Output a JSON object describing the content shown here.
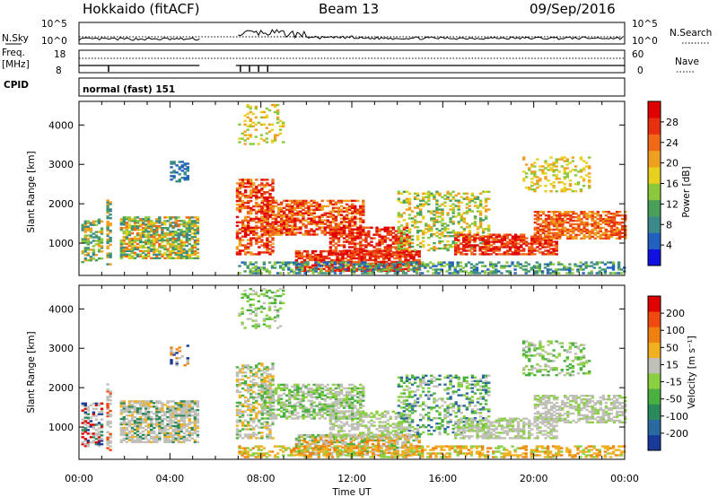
{
  "header": {
    "radar": "Hokkaido (fitACF)",
    "beam": "Beam 13",
    "date": "09/Sep/2016"
  },
  "status_panels": {
    "nsky_label": "N.Sky",
    "nsky_ticks": [
      "10^5",
      "10^0"
    ],
    "nsearch_label": "N.Search",
    "nsearch_ticks": [
      "10^5",
      "10^0"
    ],
    "freq_label_1": "Freq.",
    "freq_label_2": "[MHz]",
    "freq_ticks": [
      "18",
      "8"
    ],
    "nave_label": "Nave",
    "nave_ticks": [
      "60",
      "0"
    ],
    "cpid_label": "CPID",
    "cpid_value": "normal (fast) 151"
  },
  "chart_data": [
    {
      "type": "heatmap",
      "name_panel": "power",
      "xlabel": "Time UT",
      "ylabel": "Slant Range [km]",
      "x_ticks": [
        "00:00",
        "04:00",
        "08:00",
        "12:00",
        "16:00",
        "20:00",
        "00:00"
      ],
      "x_range_hours": [
        0,
        24
      ],
      "y_ticks": [
        1000,
        2000,
        3000,
        4000
      ],
      "y_range_km": [
        180,
        4600
      ],
      "data_gaps_hours": [
        [
          5.3,
          6.9
        ]
      ],
      "colorbar": {
        "label": "Power [dB]",
        "ticks": [
          "4",
          "8",
          "12",
          "16",
          "20",
          "24",
          "28"
        ],
        "colors": [
          "#1010e0",
          "#2060c0",
          "#3a8a8a",
          "#4aa05a",
          "#8cc83c",
          "#e8d020",
          "#f0a020",
          "#f06818",
          "#e83010",
          "#e00000"
        ]
      }
    },
    {
      "type": "heatmap",
      "name_panel": "velocity",
      "xlabel": "Time UT",
      "ylabel": "Slant Range [km]",
      "x_ticks": [
        "00:00",
        "04:00",
        "08:00",
        "12:00",
        "16:00",
        "20:00",
        "00:00"
      ],
      "x_range_hours": [
        0,
        24
      ],
      "y_ticks": [
        1000,
        2000,
        3000,
        4000
      ],
      "y_range_km": [
        180,
        4600
      ],
      "data_gaps_hours": [
        [
          5.3,
          6.9
        ]
      ],
      "colorbar": {
        "label": "Velocity [m s⁻¹]",
        "ticks": [
          "200",
          "100",
          "50",
          "15",
          "-15",
          "-50",
          "-100",
          "-200"
        ],
        "colors": [
          "#1a3a9a",
          "#2a6aa0",
          "#2a8a5a",
          "#4ab040",
          "#8ad040",
          "#c0c0b8",
          "#f0b020",
          "#f08010",
          "#f04a10",
          "#e00000"
        ]
      }
    }
  ]
}
